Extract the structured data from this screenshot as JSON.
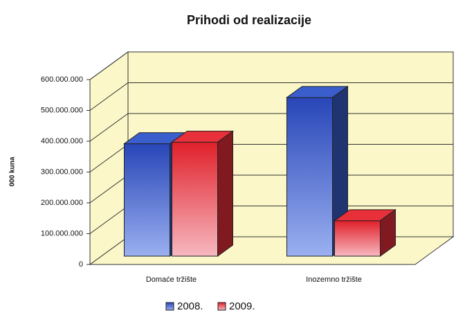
{
  "chart_data": {
    "type": "bar3d",
    "title": "Prihodi od realizacije",
    "y_label": "000 kuna",
    "categories": [
      "Domaće tržište",
      "Inozemno tržište"
    ],
    "series": [
      {
        "name": "2008.",
        "color": "#3a5fcd",
        "values": [
          365000000,
          515000000
        ]
      },
      {
        "name": "2009.",
        "color": "#e8303a",
        "values": [
          370000000,
          115000000
        ]
      }
    ],
    "ylim": [
      0,
      600000000
    ],
    "yticks": [
      {
        "value": 0,
        "label": "0"
      },
      {
        "value": 100000000,
        "label": "100.000.000"
      },
      {
        "value": 200000000,
        "label": "200.000.000"
      },
      {
        "value": 300000000,
        "label": "300.000.000"
      },
      {
        "value": 400000000,
        "label": "400.000.000"
      },
      {
        "value": 500000000,
        "label": "500.000.000"
      },
      {
        "value": 600000000,
        "label": "600.000.000"
      }
    ],
    "grid": true,
    "legend": "bottom"
  }
}
